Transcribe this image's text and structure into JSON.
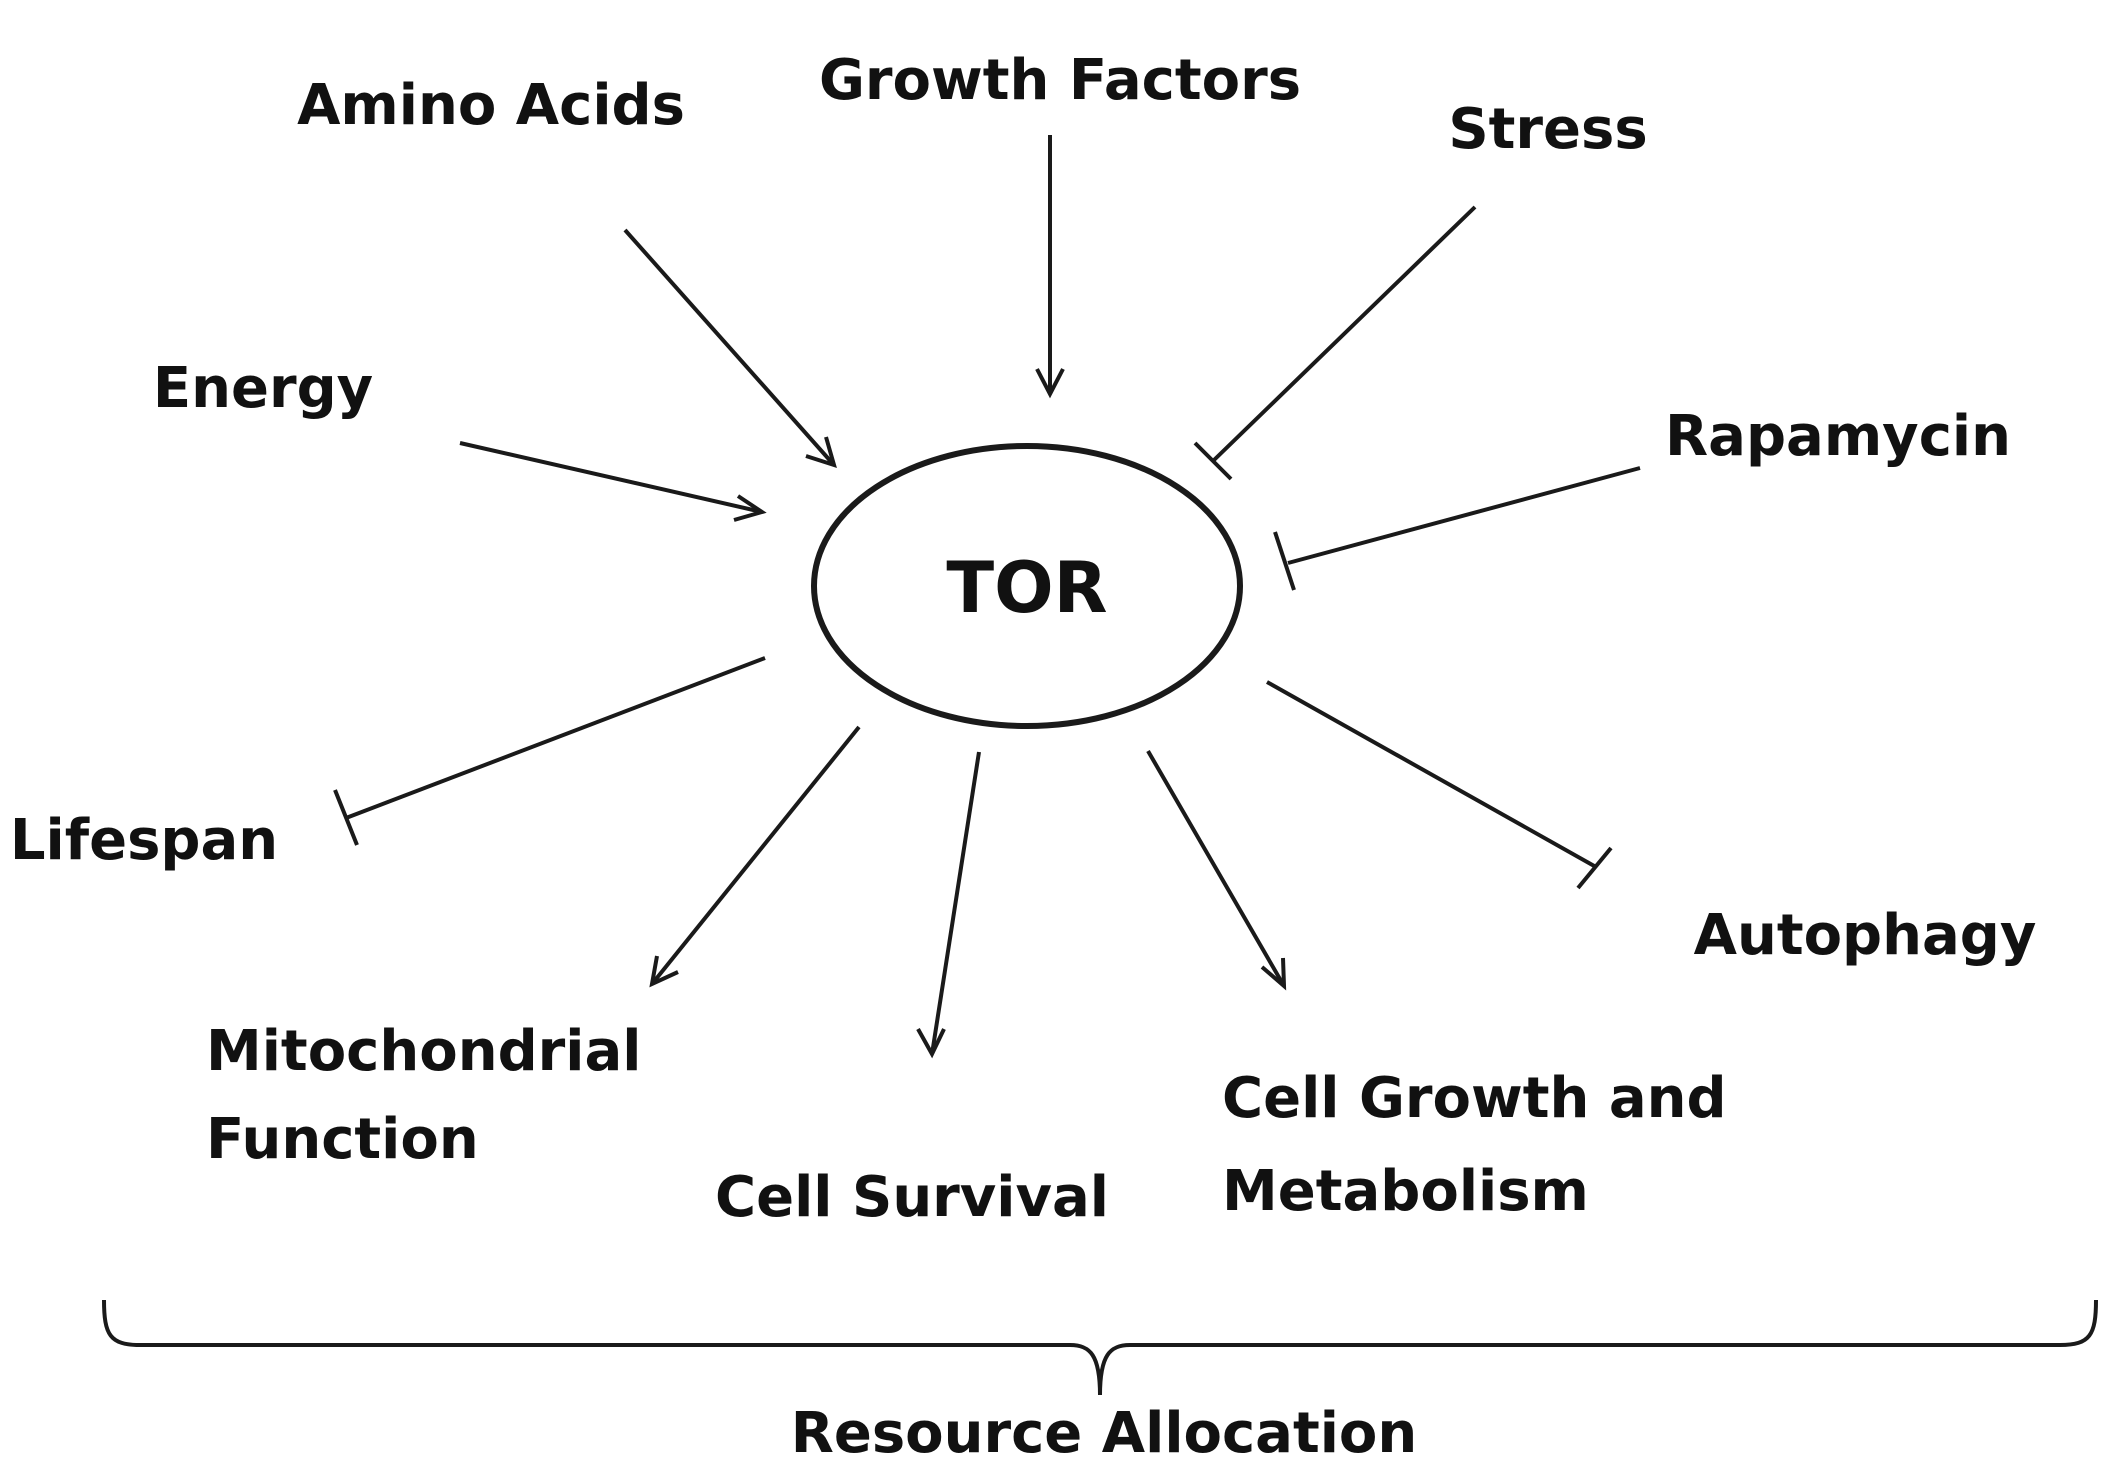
{
  "center": {
    "label": "TOR"
  },
  "inputs": [
    {
      "id": "amino-acids",
      "label": "Amino Acids",
      "effect": "activates"
    },
    {
      "id": "growth-factors",
      "label": "Growth Factors",
      "effect": "activates"
    },
    {
      "id": "stress",
      "label": "Stress",
      "effect": "inhibits"
    },
    {
      "id": "energy",
      "label": "Energy",
      "effect": "activates"
    },
    {
      "id": "rapamycin",
      "label": "Rapamycin",
      "effect": "inhibits"
    }
  ],
  "outputs": [
    {
      "id": "lifespan",
      "label": "Lifespan",
      "effect": "inhibits"
    },
    {
      "id": "mitochondrial-function",
      "lines": [
        "Mitochondrial",
        "Function"
      ],
      "effect": "activates"
    },
    {
      "id": "cell-survival",
      "label": "Cell Survival",
      "effect": "activates"
    },
    {
      "id": "cell-growth",
      "lines": [
        "Cell Growth and",
        "Metabolism"
      ],
      "effect": "activates"
    },
    {
      "id": "autophagy",
      "label": "Autophagy",
      "effect": "inhibits"
    }
  ],
  "grouping": {
    "label": "Resource Allocation"
  }
}
